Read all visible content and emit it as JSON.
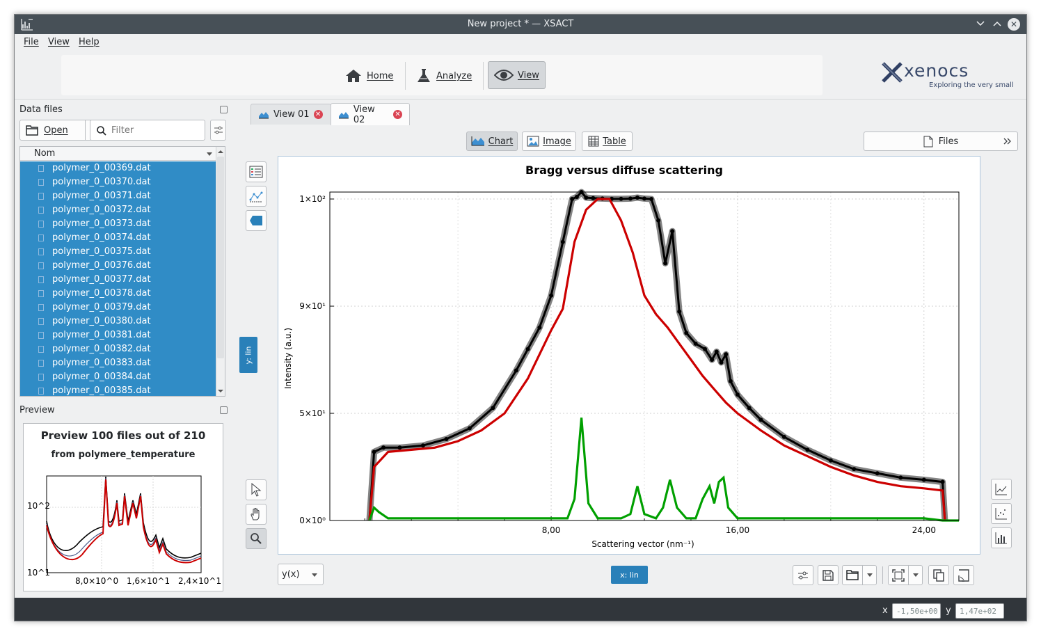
{
  "window": {
    "title": "New project * — XSACT"
  },
  "menu": {
    "file": "File",
    "view": "View",
    "help": "Help"
  },
  "toolbar": {
    "home": "Home",
    "analyze": "Analyze",
    "view": "View"
  },
  "logo": {
    "brand": "xenocs",
    "tagline": "Exploring the very small"
  },
  "data_files": {
    "title": "Data files",
    "open_label": "Open",
    "filter_placeholder": "Filter",
    "column_header": "Nom",
    "files": [
      "polymer_0_00369.dat",
      "polymer_0_00370.dat",
      "polymer_0_00371.dat",
      "polymer_0_00372.dat",
      "polymer_0_00373.dat",
      "polymer_0_00374.dat",
      "polymer_0_00375.dat",
      "polymer_0_00376.dat",
      "polymer_0_00377.dat",
      "polymer_0_00378.dat",
      "polymer_0_00379.dat",
      "polymer_0_00380.dat",
      "polymer_0_00381.dat",
      "polymer_0_00382.dat",
      "polymer_0_00383.dat",
      "polymer_0_00384.dat",
      "polymer_0_00385.dat"
    ]
  },
  "preview": {
    "title": "Preview",
    "heading1": "Preview 100 files out of 210",
    "heading2": "from polymere_temperature",
    "y_ticks": [
      "10^2",
      "10^1"
    ],
    "x_ticks": [
      "8,0×10^0",
      "1,6×10^1",
      "2,4×10^1"
    ]
  },
  "tabs": {
    "view01": "View 01",
    "view02": "View 02"
  },
  "view_modes": {
    "chart": "Chart",
    "image": "Image",
    "table": "Table",
    "files": "Files"
  },
  "axis_modes": {
    "y": "y: lin",
    "x": "x: lin",
    "plot_type": "y(x)"
  },
  "status": {
    "x_label": "x",
    "x_value": "-1,50e+00",
    "y_label": "y",
    "y_value": "1,47e+02"
  },
  "chart_data": {
    "type": "line",
    "title": "Bragg versus diffuse scattering",
    "xlabel": "Scattering vector (nm⁻¹)",
    "ylabel": "Intensity (a.u.)",
    "xlim": [
      -1.5,
      25.5
    ],
    "ylim": [
      0,
      150
    ],
    "x_ticks": [
      8,
      16,
      24
    ],
    "x_tick_labels": [
      "8,00",
      "16,00",
      "24,00"
    ],
    "y_ticks": [
      0,
      50,
      90,
      100
    ],
    "y_tick_labels": [
      "0×10^0",
      "5×10^1",
      "9×10^1",
      "1×10^2"
    ],
    "grid": true,
    "colors": {
      "measured": "#000000",
      "envelope": "#6e6e6e",
      "diffuse": "#cc0000",
      "bragg": "#00a000"
    },
    "series": [
      {
        "x": [
          0.2,
          0.4,
          0.8,
          1.5,
          2.5,
          3.5,
          4.5,
          5.5,
          6.5,
          7.0,
          7.5,
          8.0,
          8.5,
          8.9,
          9.1,
          9.3,
          9.5,
          9.8,
          10.2,
          10.6,
          11.0,
          11.4,
          11.7,
          12.0,
          12.3,
          12.6,
          12.9,
          13.2,
          13.5,
          13.8,
          14.2,
          14.6,
          14.9,
          15.1,
          15.3,
          15.5,
          15.7,
          16.0,
          16.5,
          17.0,
          18.0,
          19.0,
          20.0,
          21.0,
          22.0,
          23.0,
          24.0,
          24.8,
          24.9
        ],
        "values": [
          0,
          32,
          34,
          34,
          35,
          38,
          43,
          52,
          66,
          74,
          82,
          91,
          96,
          100,
          115,
          150,
          110,
          106,
          103,
          101,
          101,
          103,
          110,
          103,
          100,
          98,
          94,
          97,
          88,
          80,
          76,
          74,
          70,
          73,
          69,
          72,
          62,
          57,
          52,
          47,
          39,
          33,
          28,
          24,
          22,
          20,
          19,
          18,
          0
        ]
      },
      {
        "x": [
          0.2,
          0.4,
          1.0,
          2.0,
          3.0,
          4.0,
          5.0,
          6.0,
          7.0,
          7.5,
          8.0,
          8.5,
          9.0,
          9.5,
          10.0,
          10.5,
          11.0,
          11.5,
          12.0,
          12.5,
          13.0,
          13.5,
          14.0,
          14.5,
          15.0,
          15.5,
          16.0,
          17.0,
          18.0,
          19.0,
          20.0,
          21.0,
          22.0,
          23.0,
          24.0,
          24.8,
          24.9
        ],
        "values": [
          0,
          25,
          32,
          33,
          34,
          37,
          42,
          50,
          63,
          72,
          81,
          89,
          96,
          99,
          100,
          100,
          98,
          95,
          91,
          87,
          82,
          76,
          70,
          64,
          59,
          54,
          50,
          42,
          35,
          30,
          25,
          21,
          18,
          16,
          15,
          14,
          0
        ]
      },
      {
        "x": [
          0.2,
          0.4,
          0.6,
          1.0,
          2.0,
          4.0,
          6.0,
          8.0,
          8.7,
          9.0,
          9.3,
          9.6,
          10.0,
          11.0,
          11.4,
          11.7,
          12.0,
          12.5,
          12.8,
          13.1,
          13.4,
          13.8,
          14.2,
          14.5,
          14.8,
          15.0,
          15.2,
          15.4,
          15.6,
          16.0,
          18.0,
          20.0,
          22.0,
          24.0,
          24.8,
          25.5
        ],
        "values": [
          0,
          6,
          4,
          1,
          1,
          1,
          1,
          1,
          1,
          10,
          48,
          8,
          1,
          1,
          3,
          16,
          3,
          1,
          6,
          19,
          6,
          1,
          1,
          10,
          16,
          8,
          18,
          20,
          6,
          1,
          1,
          1,
          1,
          1,
          0,
          0
        ]
      }
    ]
  }
}
